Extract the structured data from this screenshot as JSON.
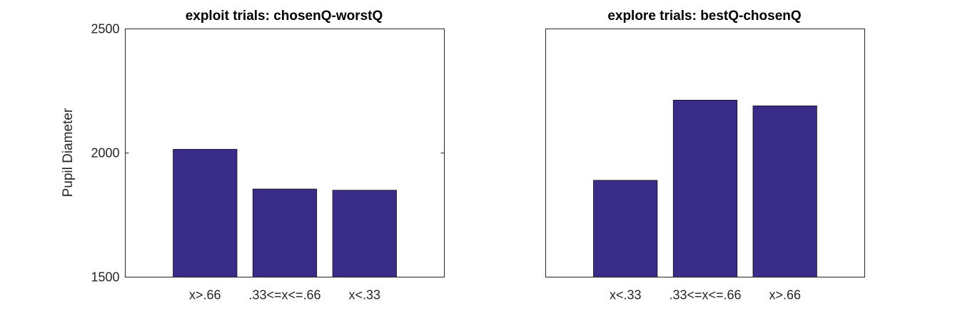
{
  "chart_data": [
    {
      "type": "bar",
      "title": "exploit trials: chosenQ-worstQ",
      "ylabel": "Pupil Diameter",
      "categories": [
        "x>.66",
        ".33<=x<=.66",
        "x<.33"
      ],
      "values": [
        2015,
        1855,
        1850
      ],
      "ylim": [
        1500,
        2500
      ],
      "yticks": [
        1500,
        2000,
        2500
      ],
      "bar_color": "#382c88",
      "grid": false
    },
    {
      "type": "bar",
      "title": "explore trials: bestQ-chosenQ",
      "categories": [
        "x<.33",
        ".33<=x<=.66",
        "x>.66"
      ],
      "values": [
        1890,
        2213,
        2190
      ],
      "ylim": [
        1500,
        2500
      ],
      "yticks": [],
      "bar_color": "#382c88",
      "grid": false
    }
  ]
}
